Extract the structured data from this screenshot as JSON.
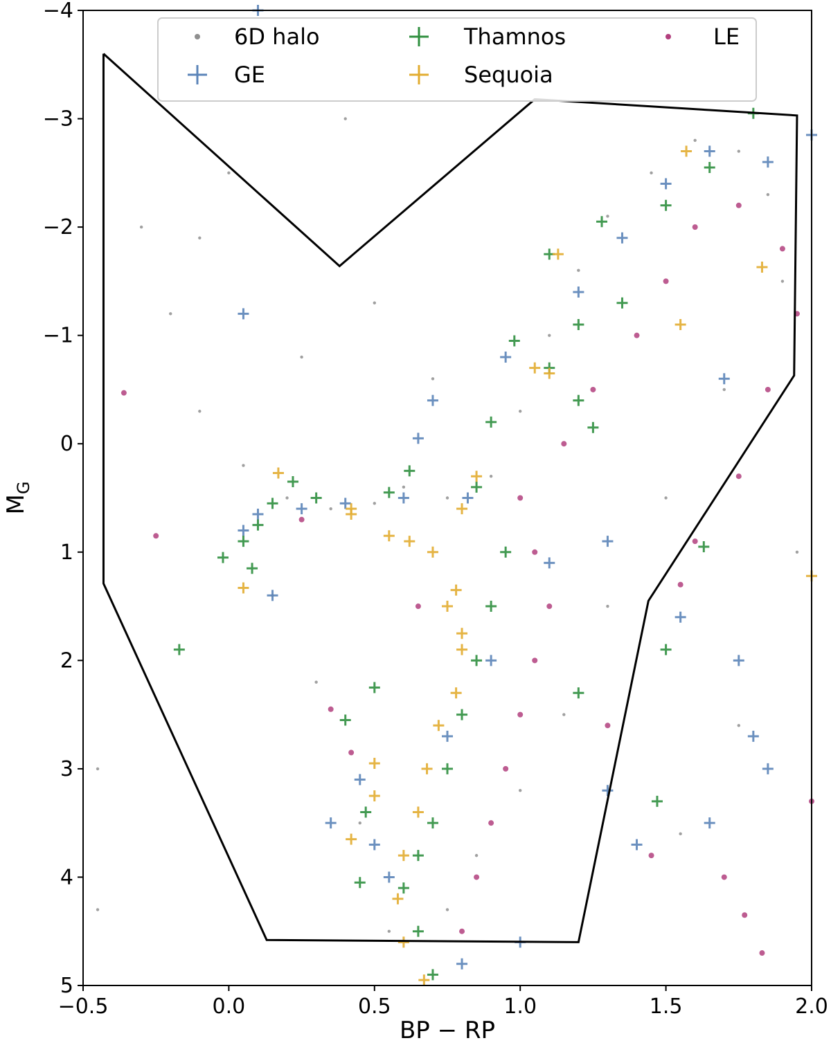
{
  "chart_data": {
    "type": "scatter",
    "xlabel": "BP − RP",
    "ylabel": "M",
    "ylabel_sub": "G",
    "xlim": [
      -0.5,
      2.0
    ],
    "ylim": [
      5,
      -4
    ],
    "y_inverted": true,
    "grid": false,
    "legend_position": "top-center",
    "xticks": [
      -0.5,
      0.0,
      0.5,
      1.0,
      1.5,
      2.0
    ],
    "xtick_labels": [
      "−0.5",
      "0.0",
      "0.5",
      "1.0",
      "1.5",
      "2.0"
    ],
    "yticks": [
      -4,
      -3,
      -2,
      -1,
      0,
      1,
      2,
      3,
      4,
      5
    ],
    "ytick_labels": [
      "−4",
      "−3",
      "−2",
      "−1",
      "0",
      "1",
      "2",
      "3",
      "4",
      "5"
    ],
    "selection_polygon": [
      [
        -0.43,
        -3.6
      ],
      [
        0.38,
        -1.64
      ],
      [
        1.05,
        -3.18
      ],
      [
        1.65,
        -3.08
      ],
      [
        1.95,
        -3.03
      ],
      [
        1.94,
        -0.63
      ],
      [
        1.44,
        1.45
      ],
      [
        1.2,
        4.6
      ],
      [
        0.13,
        4.58
      ],
      [
        -0.43,
        1.29
      ],
      [
        -0.43,
        -3.6
      ]
    ],
    "series": [
      {
        "name": "6D halo",
        "marker": "dot",
        "color": "#8f8f8f",
        "points": [
          [
            0.1,
            -4.0
          ],
          [
            -0.3,
            -2.0
          ],
          [
            -0.2,
            -1.2
          ],
          [
            -0.1,
            -0.3
          ],
          [
            0.05,
            0.2
          ],
          [
            0.2,
            0.5
          ],
          [
            0.35,
            0.6
          ],
          [
            0.5,
            0.55
          ],
          [
            0.6,
            0.4
          ],
          [
            0.75,
            0.5
          ],
          [
            0.9,
            0.3
          ],
          [
            1.0,
            -0.3
          ],
          [
            1.1,
            -1.0
          ],
          [
            1.2,
            -1.6
          ],
          [
            1.3,
            -2.1
          ],
          [
            1.45,
            -2.5
          ],
          [
            1.6,
            -2.8
          ],
          [
            1.75,
            -2.7
          ],
          [
            1.85,
            -2.3
          ],
          [
            1.9,
            -1.5
          ],
          [
            1.7,
            -0.5
          ],
          [
            1.5,
            0.5
          ],
          [
            1.3,
            1.5
          ],
          [
            1.15,
            2.5
          ],
          [
            1.0,
            3.2
          ],
          [
            0.85,
            3.8
          ],
          [
            0.75,
            4.3
          ],
          [
            0.55,
            4.5
          ],
          [
            0.45,
            3.5
          ],
          [
            0.3,
            2.2
          ],
          [
            0.15,
            1.4
          ],
          [
            -0.45,
            3.0
          ],
          [
            -0.45,
            4.3
          ],
          [
            0.4,
            -3.0
          ],
          [
            0.0,
            -2.5
          ],
          [
            -0.1,
            -1.9
          ],
          [
            0.5,
            -1.3
          ],
          [
            0.25,
            -0.8
          ],
          [
            0.7,
            -0.6
          ],
          [
            1.95,
            1.0
          ],
          [
            1.75,
            2.6
          ],
          [
            1.55,
            3.6
          ]
        ]
      },
      {
        "name": "GE",
        "marker": "plus",
        "color": "#5b84b8",
        "points": [
          [
            0.1,
            -4.0
          ],
          [
            0.05,
            -1.2
          ],
          [
            0.7,
            -0.4
          ],
          [
            0.95,
            -0.8
          ],
          [
            1.2,
            -1.4
          ],
          [
            1.35,
            -1.9
          ],
          [
            1.5,
            -2.4
          ],
          [
            1.65,
            -2.7
          ],
          [
            1.85,
            -2.6
          ],
          [
            2.0,
            -2.85
          ],
          [
            0.82,
            0.5
          ],
          [
            0.6,
            0.5
          ],
          [
            0.4,
            0.55
          ],
          [
            0.25,
            0.6
          ],
          [
            0.1,
            0.65
          ],
          [
            0.05,
            0.8
          ],
          [
            0.65,
            -0.05
          ],
          [
            0.9,
            2.0
          ],
          [
            0.75,
            2.7
          ],
          [
            0.45,
            3.1
          ],
          [
            0.35,
            3.5
          ],
          [
            0.55,
            4.0
          ],
          [
            0.5,
            3.7
          ],
          [
            1.75,
            2.0
          ],
          [
            1.8,
            2.7
          ],
          [
            1.85,
            3.0
          ],
          [
            1.65,
            3.5
          ],
          [
            1.4,
            3.7
          ],
          [
            1.3,
            3.2
          ],
          [
            1.0,
            4.6
          ],
          [
            0.8,
            4.8
          ],
          [
            1.1,
            1.1
          ],
          [
            1.3,
            0.9
          ],
          [
            1.55,
            1.6
          ],
          [
            1.7,
            -0.6
          ],
          [
            0.15,
            1.4
          ]
        ]
      },
      {
        "name": "Thamnos",
        "marker": "plus",
        "color": "#2f8f3f",
        "points": [
          [
            1.8,
            -3.05
          ],
          [
            1.65,
            -2.55
          ],
          [
            1.5,
            -2.2
          ],
          [
            1.28,
            -2.05
          ],
          [
            1.1,
            -1.75
          ],
          [
            1.35,
            -1.3
          ],
          [
            1.2,
            -1.1
          ],
          [
            0.98,
            -0.95
          ],
          [
            1.1,
            -0.7
          ],
          [
            1.2,
            -0.4
          ],
          [
            0.9,
            -0.2
          ],
          [
            0.85,
            0.4
          ],
          [
            0.95,
            1.0
          ],
          [
            0.9,
            1.5
          ],
          [
            0.85,
            2.0
          ],
          [
            0.8,
            2.5
          ],
          [
            0.75,
            3.0
          ],
          [
            0.7,
            3.5
          ],
          [
            0.65,
            3.8
          ],
          [
            0.6,
            4.1
          ],
          [
            0.65,
            4.5
          ],
          [
            0.7,
            4.9
          ],
          [
            0.62,
            0.25
          ],
          [
            0.55,
            0.45
          ],
          [
            0.3,
            0.5
          ],
          [
            0.22,
            0.35
          ],
          [
            0.15,
            0.55
          ],
          [
            0.1,
            0.75
          ],
          [
            0.05,
            0.9
          ],
          [
            -0.02,
            1.05
          ],
          [
            0.08,
            1.15
          ],
          [
            -0.17,
            1.9
          ],
          [
            1.63,
            0.95
          ],
          [
            1.5,
            1.9
          ],
          [
            1.47,
            3.3
          ],
          [
            1.2,
            2.3
          ],
          [
            0.4,
            2.55
          ],
          [
            0.5,
            2.25
          ],
          [
            0.47,
            3.4
          ],
          [
            0.45,
            4.05
          ],
          [
            1.25,
            -0.15
          ]
        ]
      },
      {
        "name": "Sequoia",
        "marker": "plus",
        "color": "#e2ac30",
        "points": [
          [
            1.57,
            -2.7
          ],
          [
            1.13,
            -1.75
          ],
          [
            1.83,
            -1.63
          ],
          [
            1.55,
            -1.1
          ],
          [
            1.05,
            -0.7
          ],
          [
            1.1,
            -0.65
          ],
          [
            0.85,
            0.3
          ],
          [
            0.8,
            0.6
          ],
          [
            0.7,
            1.0
          ],
          [
            0.75,
            1.5
          ],
          [
            0.8,
            1.9
          ],
          [
            0.78,
            2.3
          ],
          [
            0.72,
            2.6
          ],
          [
            0.68,
            3.0
          ],
          [
            0.65,
            3.4
          ],
          [
            0.6,
            3.8
          ],
          [
            0.58,
            4.2
          ],
          [
            0.6,
            4.6
          ],
          [
            0.67,
            4.95
          ],
          [
            0.17,
            0.27
          ],
          [
            0.42,
            0.6
          ],
          [
            0.42,
            0.65
          ],
          [
            0.05,
            1.33
          ],
          [
            0.55,
            0.85
          ],
          [
            0.62,
            0.9
          ],
          [
            0.78,
            1.35
          ],
          [
            0.8,
            1.75
          ],
          [
            2.0,
            1.22
          ],
          [
            0.5,
            3.25
          ],
          [
            0.42,
            3.65
          ],
          [
            0.5,
            2.95
          ]
        ]
      },
      {
        "name": "LE",
        "marker": "dot",
        "color": "#b2407e",
        "points": [
          [
            -0.36,
            -0.47
          ],
          [
            -0.25,
            0.85
          ],
          [
            1.0,
            0.5
          ],
          [
            1.05,
            1.0
          ],
          [
            1.1,
            1.5
          ],
          [
            1.05,
            2.0
          ],
          [
            1.0,
            2.5
          ],
          [
            0.95,
            3.0
          ],
          [
            0.9,
            3.5
          ],
          [
            0.85,
            4.0
          ],
          [
            0.8,
            4.5
          ],
          [
            1.15,
            0.0
          ],
          [
            1.25,
            -0.5
          ],
          [
            1.4,
            -1.0
          ],
          [
            1.5,
            -1.5
          ],
          [
            1.6,
            -2.0
          ],
          [
            1.75,
            -2.2
          ],
          [
            1.9,
            -1.8
          ],
          [
            1.95,
            -1.2
          ],
          [
            1.85,
            -0.5
          ],
          [
            1.75,
            0.3
          ],
          [
            1.6,
            0.9
          ],
          [
            1.55,
            1.3
          ],
          [
            1.3,
            2.6
          ],
          [
            1.45,
            3.8
          ],
          [
            1.7,
            4.0
          ],
          [
            1.77,
            4.35
          ],
          [
            1.83,
            4.7
          ],
          [
            2.0,
            3.3
          ],
          [
            0.35,
            2.45
          ],
          [
            0.42,
            2.85
          ],
          [
            0.65,
            1.5
          ],
          [
            0.25,
            0.7
          ]
        ]
      }
    ],
    "legend_entries": [
      {
        "name": "6D halo",
        "marker": "dot",
        "color": "#8f8f8f"
      },
      {
        "name": "Thamnos",
        "marker": "plus",
        "color": "#2f8f3f"
      },
      {
        "name": "LE",
        "marker": "dot",
        "color": "#b2407e"
      },
      {
        "name": "GE",
        "marker": "plus",
        "color": "#5b84b8"
      },
      {
        "name": "Sequoia",
        "marker": "plus",
        "color": "#e2ac30"
      }
    ]
  }
}
